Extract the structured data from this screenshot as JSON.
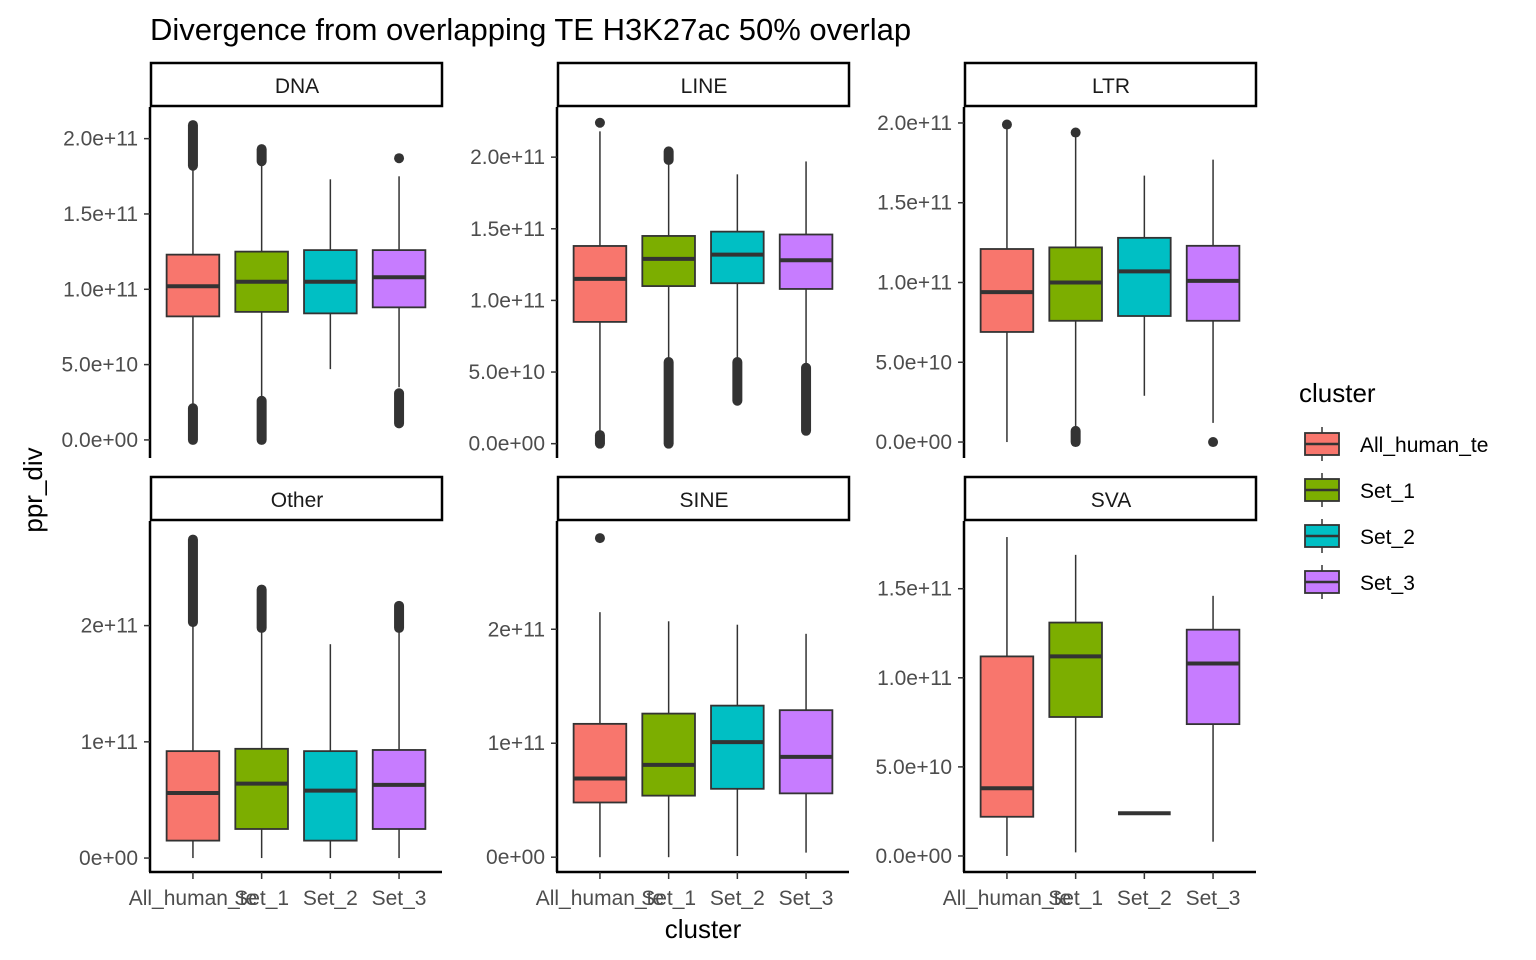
{
  "chart_data": {
    "type": "boxplot",
    "title": "Divergence from overlapping TE H3K27ac 50% overlap",
    "xlabel": "cluster",
    "ylabel": "ppr_div",
    "grid": false,
    "facet_layout": "2 rows x 3 columns, free y scales",
    "legend": {
      "title": "cluster",
      "placement": "right",
      "entries": [
        {
          "label": "All_human_te",
          "color": "#F8766D"
        },
        {
          "label": "Set_1",
          "color": "#7CAE00"
        },
        {
          "label": "Set_2",
          "color": "#00BFC4"
        },
        {
          "label": "Set_3",
          "color": "#C77CFF"
        }
      ]
    },
    "categories": [
      "All_human_te",
      "Set_1",
      "Set_2",
      "Set_3"
    ],
    "x_tick_labels": [
      "All_human_te",
      "Set_1",
      "Set_2",
      "Set_3"
    ],
    "value_unit_note": "box statistics given in raw units (e.g. 1.02e11)",
    "panels": [
      {
        "name": "DNA",
        "ylim": [
          -12000000000.0,
          221000000000.0
        ],
        "y_ticks": [
          0,
          50000000000.0,
          100000000000.0,
          150000000000.0,
          200000000000.0
        ],
        "y_tick_labels": [
          "0.0e+00",
          "5.0e+10",
          "1.0e+11",
          "1.5e+11",
          "2.0e+11"
        ],
        "boxes": [
          {
            "cluster": "All_human_te",
            "lower_whisker": 21000000000.0,
            "q1": 82000000000.0,
            "median": 102000000000.0,
            "q3": 123000000000.0,
            "upper_whisker": 182000000000.0,
            "outliers_low_range": [
              0,
              21000000000.0
            ],
            "outliers_high_range": [
              182000000000.0,
              209000000000.0
            ]
          },
          {
            "cluster": "Set_1",
            "lower_whisker": 26000000000.0,
            "q1": 85000000000.0,
            "median": 105000000000.0,
            "q3": 125000000000.0,
            "upper_whisker": 185000000000.0,
            "outliers_low_range": [
              0,
              26000000000.0
            ],
            "outliers_high_range": [
              185000000000.0,
              193000000000.0
            ]
          },
          {
            "cluster": "Set_2",
            "lower_whisker": 47000000000.0,
            "q1": 84000000000.0,
            "median": 105000000000.0,
            "q3": 126000000000.0,
            "upper_whisker": 173000000000.0,
            "outliers_low_range": null,
            "outliers_high_range": null
          },
          {
            "cluster": "Set_3",
            "lower_whisker": 35000000000.0,
            "q1": 88000000000.0,
            "median": 108000000000.0,
            "q3": 126000000000.0,
            "upper_whisker": 175000000000.0,
            "outliers_low_range": [
              11000000000.0,
              31000000000.0
            ],
            "outliers_high_range": [
              187000000000.0,
              187000000000.0
            ]
          }
        ]
      },
      {
        "name": "LINE",
        "ylim": [
          -10000000000.0,
          235000000000.0
        ],
        "y_ticks": [
          0,
          50000000000.0,
          100000000000.0,
          150000000000.0,
          200000000000.0
        ],
        "y_tick_labels": [
          "0.0e+00",
          "5.0e+10",
          "1.0e+11",
          "1.5e+11",
          "2.0e+11"
        ],
        "boxes": [
          {
            "cluster": "All_human_te",
            "lower_whisker": 6000000000.0,
            "q1": 85000000000.0,
            "median": 115000000000.0,
            "q3": 138000000000.0,
            "upper_whisker": 218000000000.0,
            "outliers_low_range": [
              0,
              6000000000.0
            ],
            "outliers_high_range": [
              224000000000.0,
              224000000000.0
            ]
          },
          {
            "cluster": "Set_1",
            "lower_whisker": 57000000000.0,
            "q1": 110000000000.0,
            "median": 129000000000.0,
            "q3": 145000000000.0,
            "upper_whisker": 198000000000.0,
            "outliers_low_range": [
              0,
              57000000000.0
            ],
            "outliers_high_range": [
              198000000000.0,
              204000000000.0
            ]
          },
          {
            "cluster": "Set_2",
            "lower_whisker": 57000000000.0,
            "q1": 112000000000.0,
            "median": 132000000000.0,
            "q3": 148000000000.0,
            "upper_whisker": 188000000000.0,
            "outliers_low_range": [
              30000000000.0,
              57000000000.0
            ],
            "outliers_high_range": null
          },
          {
            "cluster": "Set_3",
            "lower_whisker": 53000000000.0,
            "q1": 108000000000.0,
            "median": 128000000000.0,
            "q3": 146000000000.0,
            "upper_whisker": 197000000000.0,
            "outliers_low_range": [
              9000000000.0,
              53000000000.0
            ],
            "outliers_high_range": null
          }
        ]
      },
      {
        "name": "LTR",
        "ylim": [
          -10000000000.0,
          210000000000.0
        ],
        "y_ticks": [
          0,
          50000000000.0,
          100000000000.0,
          150000000000.0,
          200000000000.0
        ],
        "y_tick_labels": [
          "0.0e+00",
          "5.0e+10",
          "1.0e+11",
          "1.5e+11",
          "2.0e+11"
        ],
        "boxes": [
          {
            "cluster": "All_human_te",
            "lower_whisker": 0,
            "q1": 69000000000.0,
            "median": 94000000000.0,
            "q3": 121000000000.0,
            "upper_whisker": 198000000000.0,
            "outliers_low_range": null,
            "outliers_high_range": [
              199000000000.0,
              199000000000.0
            ]
          },
          {
            "cluster": "Set_1",
            "lower_whisker": 7000000000.0,
            "q1": 76000000000.0,
            "median": 100000000000.0,
            "q3": 122000000000.0,
            "upper_whisker": 192000000000.0,
            "outliers_low_range": [
              0,
              7000000000.0
            ],
            "outliers_high_range": [
              194000000000.0,
              194000000000.0
            ]
          },
          {
            "cluster": "Set_2",
            "lower_whisker": 29000000000.0,
            "q1": 79000000000.0,
            "median": 107000000000.0,
            "q3": 128000000000.0,
            "upper_whisker": 167000000000.0,
            "outliers_low_range": null,
            "outliers_high_range": null
          },
          {
            "cluster": "Set_3",
            "lower_whisker": 12000000000.0,
            "q1": 76000000000.0,
            "median": 101000000000.0,
            "q3": 123000000000.0,
            "upper_whisker": 177000000000.0,
            "outliers_low_range": [
              0,
              0
            ],
            "outliers_high_range": null
          }
        ]
      },
      {
        "name": "Other",
        "ylim": [
          -12000000000.0,
          290000000000.0
        ],
        "y_ticks": [
          0,
          100000000000.0,
          200000000000.0
        ],
        "y_tick_labels": [
          "0e+00",
          "1e+11",
          "2e+11"
        ],
        "boxes": [
          {
            "cluster": "All_human_te",
            "lower_whisker": 0,
            "q1": 15000000000.0,
            "median": 56000000000.0,
            "q3": 92000000000.0,
            "upper_whisker": 203000000000.0,
            "outliers_low_range": null,
            "outliers_high_range": [
              203000000000.0,
              274000000000.0
            ]
          },
          {
            "cluster": "Set_1",
            "lower_whisker": 0,
            "q1": 25000000000.0,
            "median": 64000000000.0,
            "q3": 94000000000.0,
            "upper_whisker": 198000000000.0,
            "outliers_low_range": null,
            "outliers_high_range": [
              198000000000.0,
              231000000000.0
            ]
          },
          {
            "cluster": "Set_2",
            "lower_whisker": 0,
            "q1": 15000000000.0,
            "median": 58000000000.0,
            "q3": 92000000000.0,
            "upper_whisker": 184000000000.0,
            "outliers_low_range": null,
            "outliers_high_range": null
          },
          {
            "cluster": "Set_3",
            "lower_whisker": 0,
            "q1": 25000000000.0,
            "median": 63000000000.0,
            "q3": 93000000000.0,
            "upper_whisker": 196000000000.0,
            "outliers_low_range": null,
            "outliers_high_range": [
              198000000000.0,
              217000000000.0
            ]
          }
        ]
      },
      {
        "name": "SINE",
        "ylim": [
          -13000000000.0,
          295000000000.0
        ],
        "y_ticks": [
          0,
          100000000000.0,
          200000000000.0
        ],
        "y_tick_labels": [
          "0e+00",
          "1e+11",
          "2e+11"
        ],
        "boxes": [
          {
            "cluster": "All_human_te",
            "lower_whisker": 0,
            "q1": 48000000000.0,
            "median": 69000000000.0,
            "q3": 117000000000.0,
            "upper_whisker": 215000000000.0,
            "outliers_low_range": null,
            "outliers_high_range": [
              280000000000.0,
              280000000000.0
            ]
          },
          {
            "cluster": "Set_1",
            "lower_whisker": 0,
            "q1": 54000000000.0,
            "median": 81000000000.0,
            "q3": 126000000000.0,
            "upper_whisker": 207000000000.0,
            "outliers_low_range": null,
            "outliers_high_range": null
          },
          {
            "cluster": "Set_2",
            "lower_whisker": 1000000000.0,
            "q1": 60000000000.0,
            "median": 101000000000.0,
            "q3": 133000000000.0,
            "upper_whisker": 204000000000.0,
            "outliers_low_range": null,
            "outliers_high_range": null
          },
          {
            "cluster": "Set_3",
            "lower_whisker": 4000000000.0,
            "q1": 56000000000.0,
            "median": 88000000000.0,
            "q3": 129000000000.0,
            "upper_whisker": 196000000000.0,
            "outliers_low_range": null,
            "outliers_high_range": null
          }
        ]
      },
      {
        "name": "SVA",
        "ylim": [
          -9000000000.0,
          188000000000.0
        ],
        "y_ticks": [
          0,
          50000000000.0,
          100000000000.0,
          150000000000.0
        ],
        "y_tick_labels": [
          "0.0e+00",
          "5.0e+10",
          "1.0e+11",
          "1.5e+11"
        ],
        "boxes": [
          {
            "cluster": "All_human_te",
            "lower_whisker": 0,
            "q1": 22000000000.0,
            "median": 38000000000.0,
            "q3": 112000000000.0,
            "upper_whisker": 179000000000.0,
            "outliers_low_range": null,
            "outliers_high_range": null
          },
          {
            "cluster": "Set_1",
            "lower_whisker": 2000000000.0,
            "q1": 78000000000.0,
            "median": 112000000000.0,
            "q3": 131000000000.0,
            "upper_whisker": 169000000000.0,
            "outliers_low_range": null,
            "outliers_high_range": null
          },
          {
            "cluster": "Set_2",
            "lower_whisker": 24000000000.0,
            "q1": 24000000000.0,
            "median": 24000000000.0,
            "q3": 24000000000.0,
            "upper_whisker": 24000000000.0,
            "outliers_low_range": null,
            "outliers_high_range": null
          },
          {
            "cluster": "Set_3",
            "lower_whisker": 8000000000.0,
            "q1": 74000000000.0,
            "median": 108000000000.0,
            "q3": 127000000000.0,
            "upper_whisker": 146000000000.0,
            "outliers_low_range": null,
            "outliers_high_range": null
          }
        ]
      }
    ]
  }
}
